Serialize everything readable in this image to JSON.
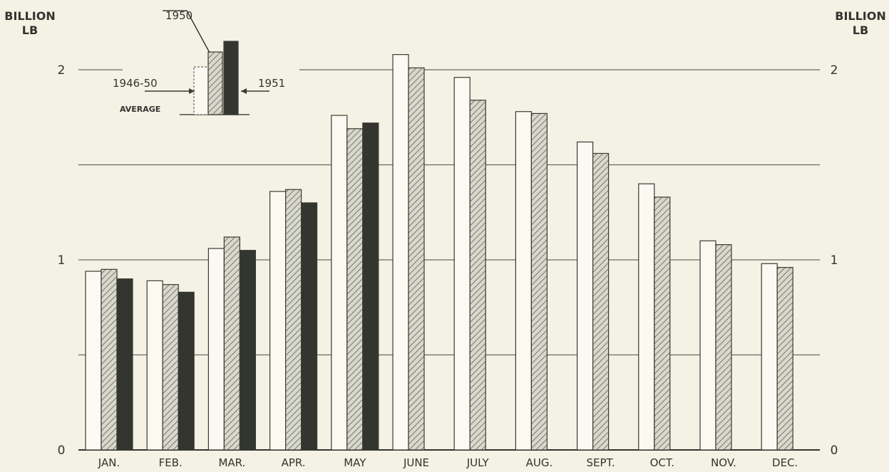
{
  "chart_data": {
    "type": "bar",
    "ylabel_left": "BILLION\nLB",
    "ylabel_right": "BILLION\nLB",
    "ylim": [
      0,
      2.1
    ],
    "grid": true,
    "categories": [
      "JAN.",
      "FEB.",
      "MAR.",
      "APR.",
      "MAY",
      "JUNE",
      "JULY",
      "AUG.",
      "SEPT.",
      "OCT.",
      "NOV.",
      "DEC."
    ],
    "y_ticks_left": [
      {
        "value": 0,
        "label": "0"
      },
      {
        "value": 1,
        "label": "1"
      },
      {
        "value": 2,
        "label": "2"
      }
    ],
    "y_ticks_right": [
      {
        "value": 0,
        "label": "0"
      },
      {
        "value": 1,
        "label": "1"
      },
      {
        "value": 2,
        "label": "2"
      }
    ],
    "gridlines": [
      0.5,
      1,
      1.5,
      2
    ],
    "series": [
      {
        "name": "1946-50 AVERAGE",
        "style": "white",
        "values": [
          0.94,
          0.89,
          1.06,
          1.36,
          1.76,
          2.08,
          1.96,
          1.78,
          1.62,
          1.4,
          1.1,
          0.98
        ]
      },
      {
        "name": "1950",
        "style": "hatched",
        "values": [
          0.95,
          0.87,
          1.12,
          1.37,
          1.69,
          2.01,
          1.84,
          1.77,
          1.56,
          1.33,
          1.08,
          0.96
        ]
      },
      {
        "name": "1951",
        "style": "black",
        "values": [
          0.9,
          0.83,
          1.05,
          1.3,
          1.72,
          null,
          null,
          null,
          null,
          null,
          null,
          null
        ]
      }
    ],
    "legend": {
      "position": "top-left",
      "label_1950": "1950",
      "label_avg_1": "1946-50",
      "label_avg_2": "AVERAGE",
      "label_1951": "1951"
    },
    "colors": {
      "background": "#f4f2e4",
      "bar_white": "#fbfaf2",
      "bar_hatch_bg": "#d9d8cc",
      "bar_hatch_line": "#77766c",
      "bar_black": "#33352f",
      "gridline": "#6a6a60"
    }
  }
}
